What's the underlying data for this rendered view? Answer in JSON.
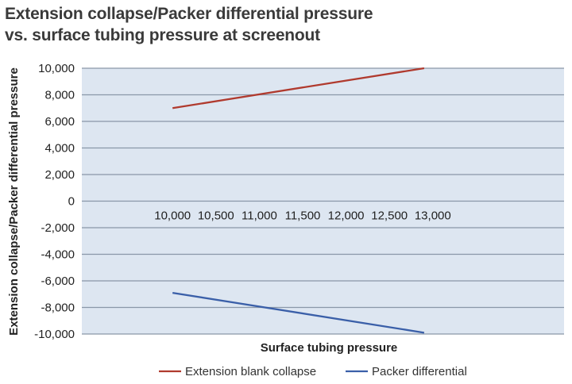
{
  "title_line1": "Extension collapse/Packer differential pressure",
  "title_line2": "vs. surface tubing pressure at screenout",
  "chart_data": {
    "type": "line",
    "xlabel": "Surface tubing pressure",
    "ylabel": "Extension collapse/Packer differential pressure",
    "xlim": [
      9000,
      14000
    ],
    "ylim": [
      -10000,
      10000
    ],
    "x_ticks": [
      10000,
      10500,
      11000,
      11500,
      12000,
      12500,
      13000
    ],
    "x_tick_labels": [
      "10,000",
      "10,500",
      "11,000",
      "11,500",
      "12,000",
      "12,500",
      "13,000"
    ],
    "y_ticks": [
      10000,
      8000,
      6000,
      4000,
      2000,
      0,
      -2000,
      -4000,
      -6000,
      -8000,
      -10000
    ],
    "y_tick_labels": [
      "10,000",
      "8,000",
      "6,000",
      "4,000",
      "2,000",
      "0",
      "-2,000",
      "-4,000",
      "-6,000",
      "-8,000",
      "-10,000"
    ],
    "grid": true,
    "legend_position": "bottom",
    "series": [
      {
        "name": "Extension blank collapse",
        "color": "#b03a2e",
        "x": [
          10000,
          12900
        ],
        "y": [
          7000,
          10000
        ]
      },
      {
        "name": "Packer differential",
        "color": "#3a5fa8",
        "x": [
          10000,
          12900
        ],
        "y": [
          -6900,
          -9900
        ]
      }
    ]
  },
  "colors": {
    "plot_background": "#dde6f1",
    "grid": "#8a97a8"
  }
}
